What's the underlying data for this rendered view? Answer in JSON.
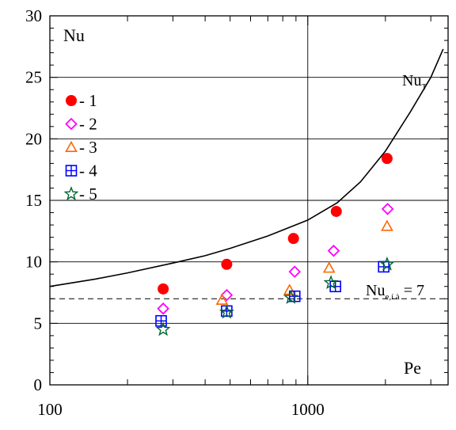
{
  "chart_data": {
    "type": "scatter",
    "title": "",
    "xlabel": "Pe",
    "ylabel": "Nu",
    "x_scale": "log",
    "xlim": [
      100,
      3500
    ],
    "ylim": [
      0,
      30
    ],
    "x_ticks": [
      100,
      1000
    ],
    "x_tick_labels": [
      "100",
      "1000"
    ],
    "y_ticks": [
      0,
      5,
      10,
      15,
      20,
      25,
      30
    ],
    "y_tick_labels": [
      "0",
      "5",
      "10",
      "15",
      "20",
      "25",
      "30"
    ],
    "grid": true,
    "legend_position": "top-left",
    "series": [
      {
        "name": "- 1",
        "marker": "circle",
        "color": "#ff0000",
        "points": [
          [
            275,
            7.8
          ],
          [
            485,
            9.8
          ],
          [
            880,
            11.9
          ],
          [
            1290,
            14.1
          ],
          [
            2030,
            18.4
          ]
        ]
      },
      {
        "name": "- 2",
        "marker": "diamond",
        "color": "#ff00ff",
        "points": [
          [
            275,
            6.2
          ],
          [
            485,
            7.3
          ],
          [
            890,
            9.2
          ],
          [
            1260,
            10.9
          ],
          [
            2040,
            14.3
          ]
        ]
      },
      {
        "name": "- 3",
        "marker": "triangle",
        "color": "#ff6600",
        "points": [
          [
            465,
            6.9
          ],
          [
            850,
            7.7
          ],
          [
            1210,
            9.5
          ],
          [
            2030,
            12.9
          ]
        ]
      },
      {
        "name": "- 4",
        "marker": "square-plus",
        "color": "#0000ff",
        "points": [
          [
            270,
            5.2
          ],
          [
            485,
            6.0
          ],
          [
            890,
            7.2
          ],
          [
            1280,
            8.0
          ],
          [
            1970,
            9.6
          ]
        ]
      },
      {
        "name": "- 5",
        "marker": "star",
        "color": "#006633",
        "points": [
          [
            275,
            4.5
          ],
          [
            485,
            5.9
          ],
          [
            860,
            7.1
          ],
          [
            1230,
            8.3
          ],
          [
            2030,
            9.8
          ]
        ]
      }
    ],
    "curve": {
      "label": "Nu",
      "label_sub": "T",
      "points": [
        [
          100,
          8.0
        ],
        [
          150,
          8.6
        ],
        [
          200,
          9.1
        ],
        [
          300,
          9.9
        ],
        [
          400,
          10.5
        ],
        [
          500,
          11.1
        ],
        [
          700,
          12.1
        ],
        [
          1000,
          13.4
        ],
        [
          1300,
          14.8
        ],
        [
          1600,
          16.5
        ],
        [
          2000,
          19.0
        ],
        [
          2500,
          22.2
        ],
        [
          3000,
          25.0
        ],
        [
          3350,
          27.3
        ]
      ]
    },
    "reference_line": {
      "y": 7,
      "style": "dashed",
      "label": "Nu",
      "label_sub": "e,í à",
      "label_suffix": " = 7"
    }
  }
}
